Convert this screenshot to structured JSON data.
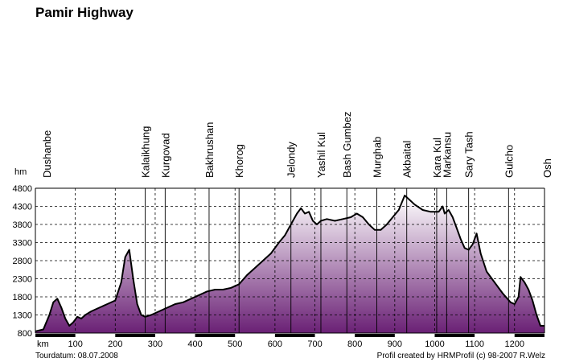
{
  "chart_data": {
    "type": "area",
    "title": "Pamir Highway",
    "xlabel": "km",
    "ylabel": "hm",
    "xlim": [
      0,
      1275
    ],
    "ylim": [
      800,
      4800
    ],
    "y_ticks": [
      800,
      1300,
      1800,
      2300,
      2800,
      3300,
      3800,
      4300,
      4800
    ],
    "x_ticks": [
      100,
      200,
      300,
      400,
      500,
      600,
      700,
      800,
      900,
      1000,
      1100,
      1200
    ],
    "grid": true,
    "series": [
      {
        "x": [
          0,
          20,
          35,
          45,
          55,
          65,
          75,
          85,
          95,
          105,
          115,
          125,
          140,
          160,
          180,
          200,
          215,
          225,
          235,
          245,
          255,
          265,
          275,
          290,
          310,
          330,
          350,
          370,
          390,
          410,
          430,
          450,
          470,
          490,
          510,
          530,
          550,
          570,
          590,
          610,
          625,
          640,
          655,
          665,
          675,
          685,
          695,
          705,
          715,
          730,
          750,
          770,
          790,
          805,
          820,
          835,
          850,
          865,
          880,
          895,
          910,
          925,
          935,
          950,
          970,
          990,
          1010,
          1020,
          1025,
          1035,
          1045,
          1055,
          1065,
          1075,
          1085,
          1095,
          1105,
          1115,
          1130,
          1150,
          1170,
          1190,
          1200,
          1210,
          1215,
          1225,
          1235,
          1245,
          1255,
          1265,
          1275
        ],
        "y": [
          850,
          900,
          1300,
          1650,
          1750,
          1500,
          1200,
          1000,
          1100,
          1250,
          1200,
          1300,
          1400,
          1500,
          1600,
          1700,
          2200,
          2900,
          3100,
          2300,
          1600,
          1300,
          1250,
          1300,
          1400,
          1500,
          1600,
          1650,
          1750,
          1850,
          1950,
          2000,
          2000,
          2050,
          2150,
          2400,
          2600,
          2800,
          3000,
          3300,
          3500,
          3800,
          4100,
          4250,
          4100,
          4150,
          3900,
          3800,
          3900,
          3950,
          3900,
          3950,
          4000,
          4100,
          4000,
          3800,
          3650,
          3650,
          3800,
          4000,
          4200,
          4600,
          4500,
          4350,
          4200,
          4150,
          4150,
          4300,
          4100,
          4200,
          4000,
          3700,
          3400,
          3150,
          3100,
          3250,
          3550,
          3000,
          2500,
          2200,
          1900,
          1650,
          1600,
          1800,
          2350,
          2200,
          2000,
          1700,
          1300,
          1000,
          1000
        ]
      }
    ],
    "places": [
      {
        "name": "Dushanbe",
        "km": 0,
        "line": false
      },
      {
        "name": "Kalaikhung",
        "km": 275,
        "line": true
      },
      {
        "name": "Kurgovad",
        "km": 325,
        "line": true
      },
      {
        "name": "Bakhrushan",
        "km": 435,
        "line": true
      },
      {
        "name": "Khorog",
        "km": 510,
        "line": true
      },
      {
        "name": "Jelondy",
        "km": 640,
        "line": true
      },
      {
        "name": "Yashil Kul",
        "km": 715,
        "line": true
      },
      {
        "name": "Bash Gumbez",
        "km": 780,
        "line": true
      },
      {
        "name": "Murghab",
        "km": 855,
        "line": true
      },
      {
        "name": "Akbaital",
        "km": 930,
        "line": true
      },
      {
        "name": "Kara Kul",
        "km": 1005,
        "line": true
      },
      {
        "name": "Markansu",
        "km": 1030,
        "line": true
      },
      {
        "name": "Sary Tash",
        "km": 1085,
        "line": true
      },
      {
        "name": "Gulcho",
        "km": 1185,
        "line": true
      },
      {
        "name": "Osh",
        "km": 1275,
        "line": false
      }
    ]
  },
  "footer": {
    "tourdatum": "Tourdatum: 08.07.2008",
    "credit": "Profil created by HRMProfil (c) 98-2007 R.Welz"
  }
}
